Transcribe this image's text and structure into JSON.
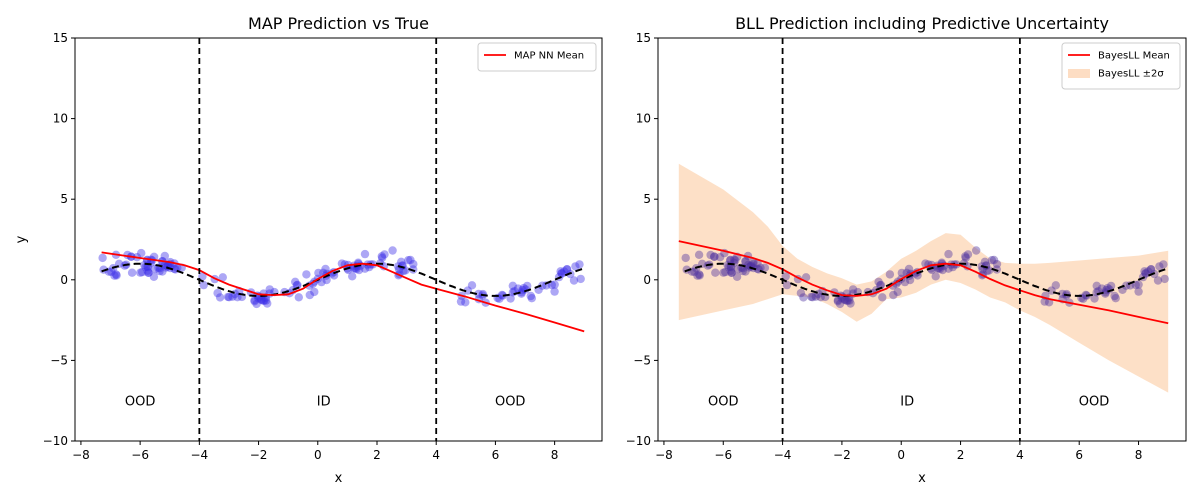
{
  "chart_data": [
    {
      "type": "scatter",
      "title": "MAP Prediction vs True",
      "xlabel": "x",
      "ylabel": "y",
      "xlim": [
        -8.2,
        9.6
      ],
      "ylim": [
        -10,
        15
      ],
      "xticks": [
        -8,
        -6,
        -4,
        -2,
        0,
        2,
        4,
        6,
        8
      ],
      "yticks": [
        -10,
        -5,
        0,
        5,
        10,
        15
      ],
      "grid": false,
      "legend_position": "top-right",
      "boundaries": [
        -4,
        4
      ],
      "region_labels": [
        {
          "text": "OOD",
          "x": -6,
          "y": -7.8
        },
        {
          "text": "ID",
          "x": 0.2,
          "y": -7.8
        },
        {
          "text": "OOD",
          "x": 6.5,
          "y": -7.8
        }
      ],
      "series": [
        {
          "name": "MAP NN Mean",
          "kind": "mean_line",
          "color": "#ff0000",
          "x": [
            -7.3,
            -6,
            -5,
            -4.5,
            -4,
            -3.5,
            -3,
            -2.5,
            -2,
            -1.5,
            -1,
            -0.5,
            0,
            0.5,
            1,
            1.5,
            2,
            2.5,
            3,
            3.5,
            4,
            4.5,
            5,
            6,
            7,
            8,
            9
          ],
          "y": [
            1.7,
            1.35,
            1.1,
            0.9,
            0.6,
            0.1,
            -0.3,
            -0.6,
            -0.9,
            -0.95,
            -0.9,
            -0.55,
            0.05,
            0.55,
            0.9,
            1.0,
            0.9,
            0.5,
            0.1,
            -0.3,
            -0.55,
            -0.8,
            -1.05,
            -1.6,
            -2.1,
            -2.65,
            -3.2
          ]
        },
        {
          "kind": "true_function",
          "color": "#000000"
        },
        {
          "kind": "observations",
          "color": "#3b2ee8",
          "seed": 7,
          "n_left": 55,
          "n_mid": 95,
          "n_right": 45
        }
      ]
    },
    {
      "type": "scatter",
      "title": "BLL Prediction including Predictive Uncertainty",
      "xlabel": "x",
      "ylabel": "",
      "xlim": [
        -8.2,
        9.6
      ],
      "ylim": [
        -10,
        15
      ],
      "xticks": [
        -8,
        -6,
        -4,
        -2,
        0,
        2,
        4,
        6,
        8
      ],
      "yticks": [
        -10,
        -5,
        0,
        5,
        10,
        15
      ],
      "grid": false,
      "legend_position": "top-right",
      "boundaries": [
        -4,
        4
      ],
      "region_labels": [
        {
          "text": "OOD",
          "x": -6,
          "y": -7.8
        },
        {
          "text": "ID",
          "x": 0.2,
          "y": -7.8
        },
        {
          "text": "OOD",
          "x": 6.5,
          "y": -7.8
        }
      ],
      "series": [
        {
          "name": "BayesLL Mean",
          "kind": "mean_line",
          "color": "#ff0000",
          "x": [
            -7.5,
            -6,
            -5,
            -4.5,
            -4,
            -3.5,
            -3,
            -2.5,
            -2,
            -1.5,
            -1,
            -0.5,
            0,
            0.5,
            1,
            1.5,
            2,
            2.5,
            3,
            3.5,
            4,
            4.5,
            5,
            6,
            7,
            8,
            9
          ],
          "y": [
            2.4,
            1.8,
            1.35,
            1.05,
            0.65,
            0.15,
            -0.3,
            -0.65,
            -0.95,
            -1.0,
            -0.9,
            -0.55,
            0.05,
            0.55,
            0.9,
            1.0,
            0.9,
            0.5,
            0.05,
            -0.35,
            -0.65,
            -0.95,
            -1.2,
            -1.55,
            -1.9,
            -2.3,
            -2.7
          ]
        },
        {
          "name": "BayesLL ±2σ",
          "kind": "band",
          "color": "#fcd5b4",
          "x": [
            -7.5,
            -6,
            -5,
            -4.5,
            -4,
            -3.5,
            -3,
            -2.5,
            -2,
            -1.5,
            -1,
            -0.5,
            0,
            0.5,
            1,
            1.5,
            2,
            2.5,
            3,
            3.5,
            4,
            4.5,
            5,
            6,
            7,
            8,
            9
          ],
          "upper": [
            7.2,
            5.6,
            4.2,
            3.3,
            2.1,
            1.3,
            0.8,
            0.4,
            0.1,
            -0.3,
            -0.1,
            0.5,
            1.3,
            1.8,
            2.4,
            2.9,
            2.8,
            2.0,
            1.3,
            1.05,
            1.0,
            1.0,
            1.05,
            1.2,
            1.35,
            1.5,
            1.8
          ],
          "lower": [
            -2.5,
            -1.9,
            -1.5,
            -1.2,
            -0.9,
            -1.0,
            -1.1,
            -1.5,
            -2.0,
            -2.6,
            -2.1,
            -1.2,
            -1.1,
            -0.8,
            -0.3,
            0.0,
            -0.2,
            -0.6,
            -1.1,
            -1.4,
            -1.9,
            -2.3,
            -2.8,
            -3.9,
            -5.0,
            -6.0,
            -7.0
          ]
        },
        {
          "kind": "true_function",
          "color": "#000000"
        },
        {
          "kind": "observations",
          "color": "#4c2fa0",
          "seed": 7,
          "n_left": 55,
          "n_mid": 95,
          "n_right": 45
        }
      ]
    }
  ]
}
